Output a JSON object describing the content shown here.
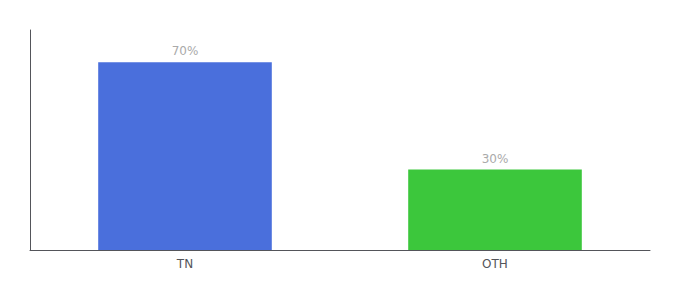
{
  "chart_data": {
    "type": "bar",
    "categories": [
      "TN",
      "OTH"
    ],
    "values": [
      70,
      30
    ],
    "value_labels": [
      "70%",
      "30%"
    ],
    "colors": [
      "#4a6fdc",
      "#3cc73c"
    ],
    "ylim": [
      0,
      82
    ],
    "data_labels": true,
    "tick_labels": "x",
    "grid": false
  }
}
